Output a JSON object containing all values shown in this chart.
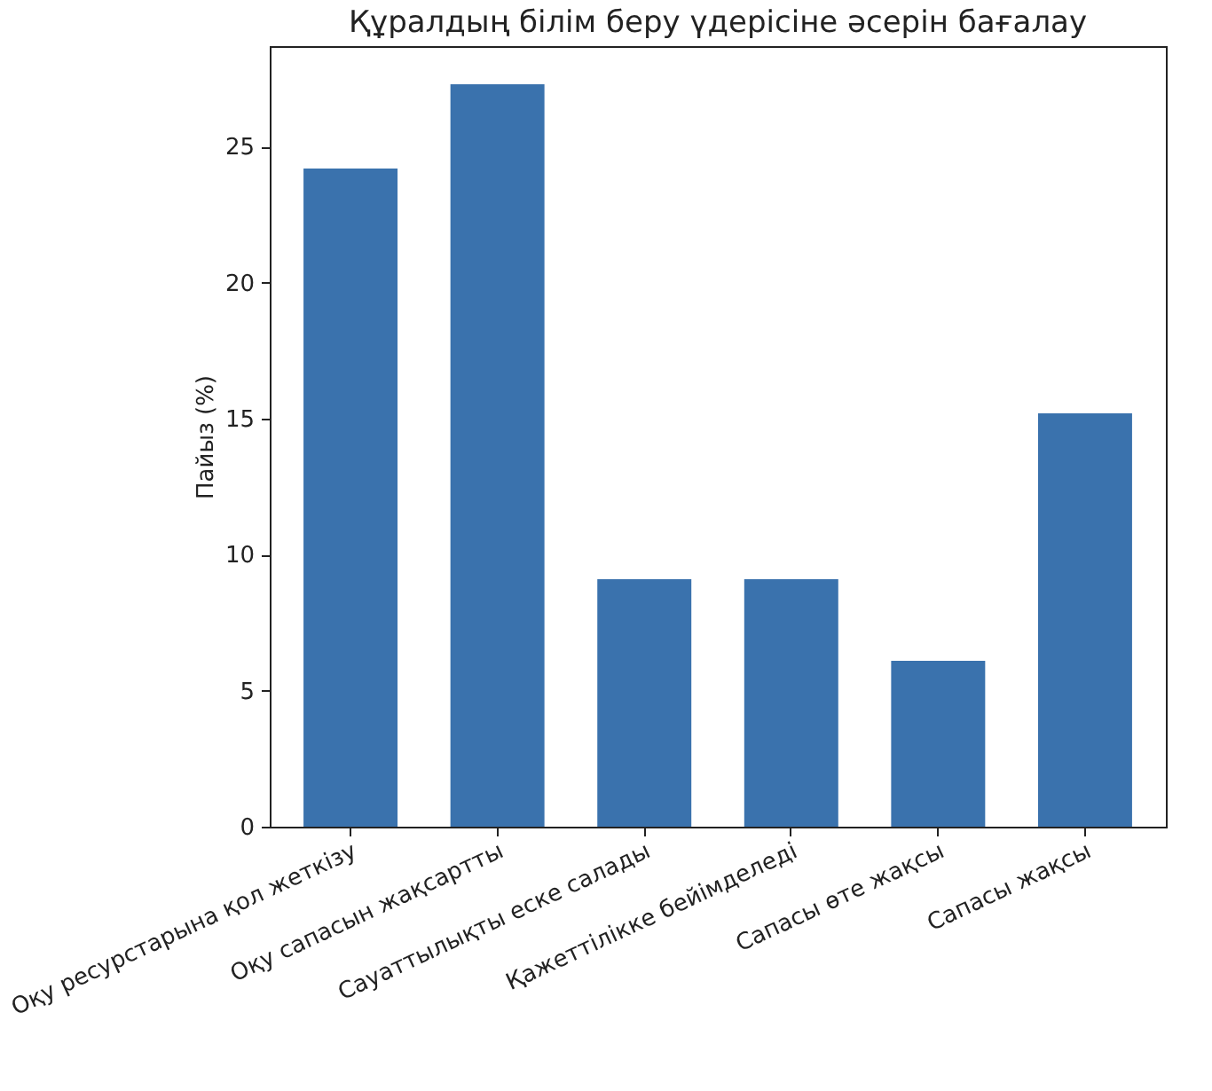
{
  "chart_data": {
    "type": "bar",
    "title": "Құралдың білім беру үдерісіне әсерін бағалау",
    "ylabel": "Пайыз (%)",
    "categories": [
      "Оқу ресурстарына қол жеткізу",
      "Оқу сапасын жақсартты",
      "Сауаттылықты еске салады",
      "Қажеттілікке бейімделеді",
      "Сапасы өте жақсы",
      "Сапасы жақсы"
    ],
    "values": [
      24.2,
      27.3,
      9.1,
      9.1,
      6.1,
      15.2
    ],
    "color": "#3a72ad",
    "ylim": [
      0,
      28.7
    ],
    "yticks": [
      0,
      5,
      10,
      15,
      20,
      25
    ],
    "grid": false
  }
}
